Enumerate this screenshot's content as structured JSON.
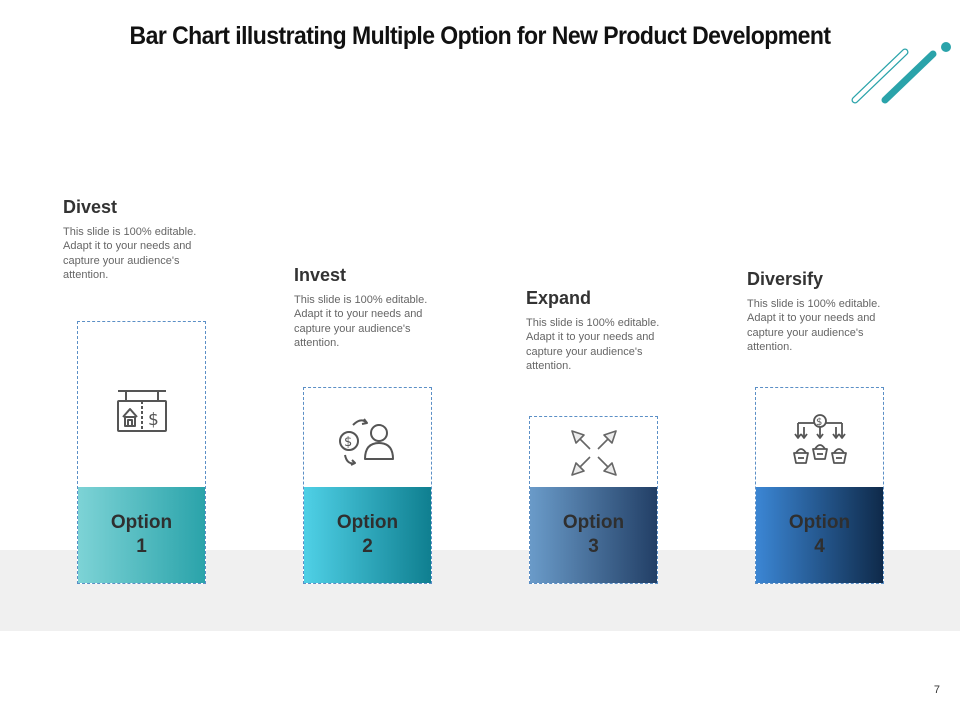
{
  "title": "Bar Chart illustrating Multiple Option for New Product Development",
  "options": [
    {
      "heading": "Divest",
      "description": "This slide is 100% editable. Adapt it to your needs and capture your audience's attention.",
      "label_line1": "Option",
      "label_line2": "1",
      "icon": "house-for-sale-sign-icon",
      "gradient": [
        "#7dd3d6",
        "#2aa3aa"
      ]
    },
    {
      "heading": "Invest",
      "description": "This slide is 100% editable. Adapt it to your needs and capture your audience's attention.",
      "label_line1": "Option",
      "label_line2": "2",
      "icon": "investor-dollar-icon",
      "gradient": [
        "#4fd0e6",
        "#0f7f90"
      ]
    },
    {
      "heading": "Expand",
      "description": "This slide is 100% editable. Adapt it to your needs and capture your audience's attention.",
      "label_line1": "Option",
      "label_line2": "3",
      "icon": "expand-arrows-icon",
      "gradient": [
        "#6a9bc9",
        "#223f66"
      ]
    },
    {
      "heading": "Diversify",
      "description": "This slide is 100% editable. Adapt it to your needs and capture your audience's attention.",
      "label_line1": "Option",
      "label_line2": "4",
      "icon": "diversify-baskets-icon",
      "gradient": [
        "#3b86d4",
        "#0f2a4a"
      ]
    }
  ],
  "page_number": "7",
  "colors": {
    "accent_teal": "#2aa3aa",
    "dashed_border": "#5b8fc6",
    "band": "#f0f0f0"
  }
}
